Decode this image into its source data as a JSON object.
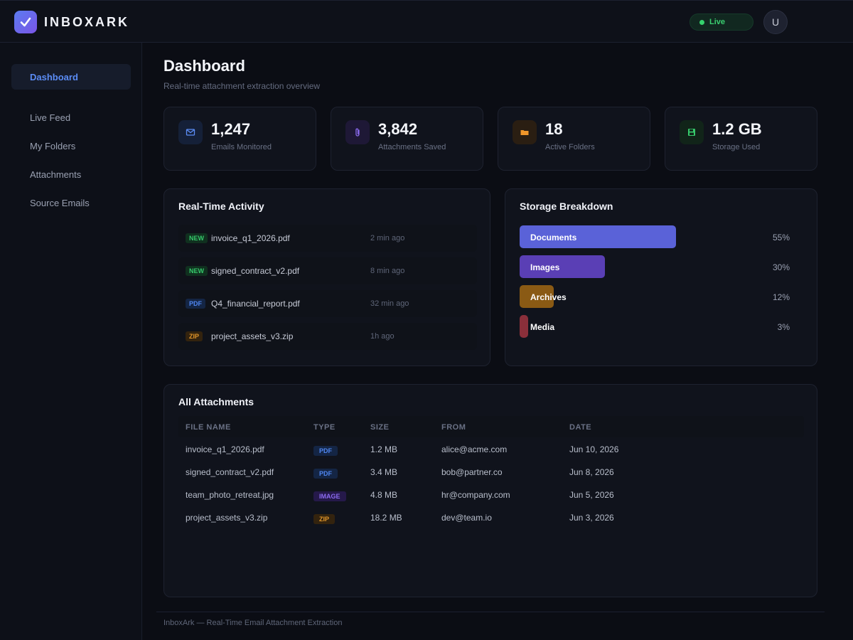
{
  "app": {
    "brand": "INBOXARK",
    "live_label": "Live",
    "avatar_initial": "U"
  },
  "sidebar": {
    "items": [
      {
        "label": "Dashboard",
        "active": true
      },
      {
        "label": "Live Feed"
      },
      {
        "label": "My Folders"
      },
      {
        "label": "Attachments"
      },
      {
        "label": "Source Emails"
      }
    ]
  },
  "page": {
    "title": "Dashboard",
    "subtitle": "Real-time attachment extraction overview"
  },
  "stats": [
    {
      "value": "1,247",
      "label": "Emails Monitored",
      "icon": "mail-icon",
      "color": "#5b8cf5"
    },
    {
      "value": "3,842",
      "label": "Attachments Saved",
      "icon": "paperclip-icon",
      "color": "#8b6bf0"
    },
    {
      "value": "18",
      "label": "Active Folders",
      "icon": "folder-icon",
      "color": "#f0962a"
    },
    {
      "value": "1.2 GB",
      "label": "Storage Used",
      "icon": "floppy-disk-icon",
      "color": "#36c96b"
    }
  ],
  "activity": {
    "title": "Real-Time Activity",
    "items": [
      {
        "badge": "NEW",
        "name": "invoice_q1_2026.pdf",
        "time": "2 min ago"
      },
      {
        "badge": "NEW",
        "name": "signed_contract_v2.pdf",
        "time": "8 min ago"
      },
      {
        "badge": "PDF",
        "name": "Q4_financial_report.pdf",
        "time": "32 min ago"
      },
      {
        "badge": "ZIP",
        "name": "project_assets_v3.zip",
        "time": "1h ago"
      }
    ]
  },
  "storage": {
    "title": "Storage Breakdown",
    "items": [
      {
        "name": "Documents",
        "pct": "55%",
        "fraction": 0.55,
        "color": "#5a62d8"
      },
      {
        "name": "Images",
        "pct": "30%",
        "fraction": 0.3,
        "color": "#5a3fb5"
      },
      {
        "name": "Archives",
        "pct": "12%",
        "fraction": 0.12,
        "color": "#8a5a14"
      },
      {
        "name": "Media",
        "pct": "3%",
        "fraction": 0.03,
        "color": "#8a2f3a"
      }
    ]
  },
  "attachments": {
    "title": "All Attachments",
    "headers": [
      "FILE NAME",
      "TYPE",
      "SIZE",
      "FROM",
      "DATE"
    ],
    "rows": [
      {
        "name": "invoice_q1_2026.pdf",
        "type": "PDF",
        "size": "1.2 MB",
        "from": "alice@acme.com",
        "date": "Jun 10, 2026"
      },
      {
        "name": "signed_contract_v2.pdf",
        "type": "PDF",
        "size": "3.4 MB",
        "from": "bob@partner.co",
        "date": "Jun 8, 2026"
      },
      {
        "name": "team_photo_retreat.jpg",
        "type": "IMAGE",
        "size": "4.8 MB",
        "from": "hr@company.com",
        "date": "Jun 5, 2026"
      },
      {
        "name": "project_assets_v3.zip",
        "type": "ZIP",
        "size": "18.2 MB",
        "from": "dev@team.io",
        "date": "Jun 3, 2026"
      }
    ]
  },
  "footer": {
    "text": "InboxArk — Real-Time Email Attachment Extraction"
  }
}
